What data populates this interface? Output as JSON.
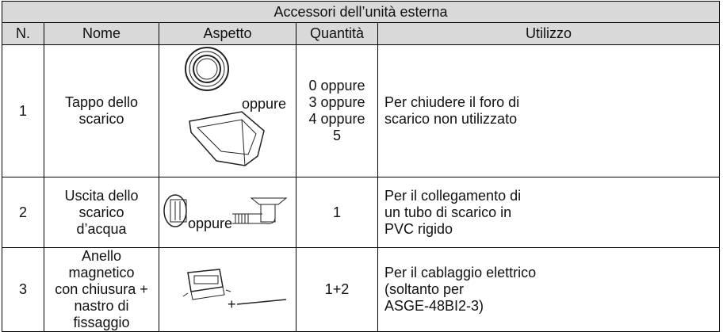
{
  "table": {
    "title": "Accessori dell’unità esterna",
    "header": [
      "N.",
      "Nome",
      "Aspetto",
      "Quantità",
      "Utilizzo"
    ],
    "rows": [
      {
        "n": "1",
        "name": [
          "Tappo dello scarico"
        ],
        "aspect_text": "oppure",
        "quantity": [
          "0 oppure",
          "3 oppure",
          "4 oppure",
          "5"
        ],
        "use": [
          "Per chiudere il foro di",
          "scarico non utilizzato"
        ]
      },
      {
        "n": "2",
        "name": [
          "Uscita dello scarico",
          "d’acqua"
        ],
        "aspect_text": "oppure",
        "quantity": [
          "1"
        ],
        "use": [
          "Per il collegamento di",
          "un tubo di scarico in",
          "PVC rigido"
        ]
      },
      {
        "n": "3",
        "name": [
          "Anello magnetico",
          "con chiusura +",
          "nastro di fissaggio"
        ],
        "aspect_text": "+",
        "quantity": [
          "1+2"
        ],
        "use": [
          "Per il cablaggio elettrico",
          "(soltanto per",
          "ASGE-48BI2-3)"
        ]
      }
    ]
  }
}
